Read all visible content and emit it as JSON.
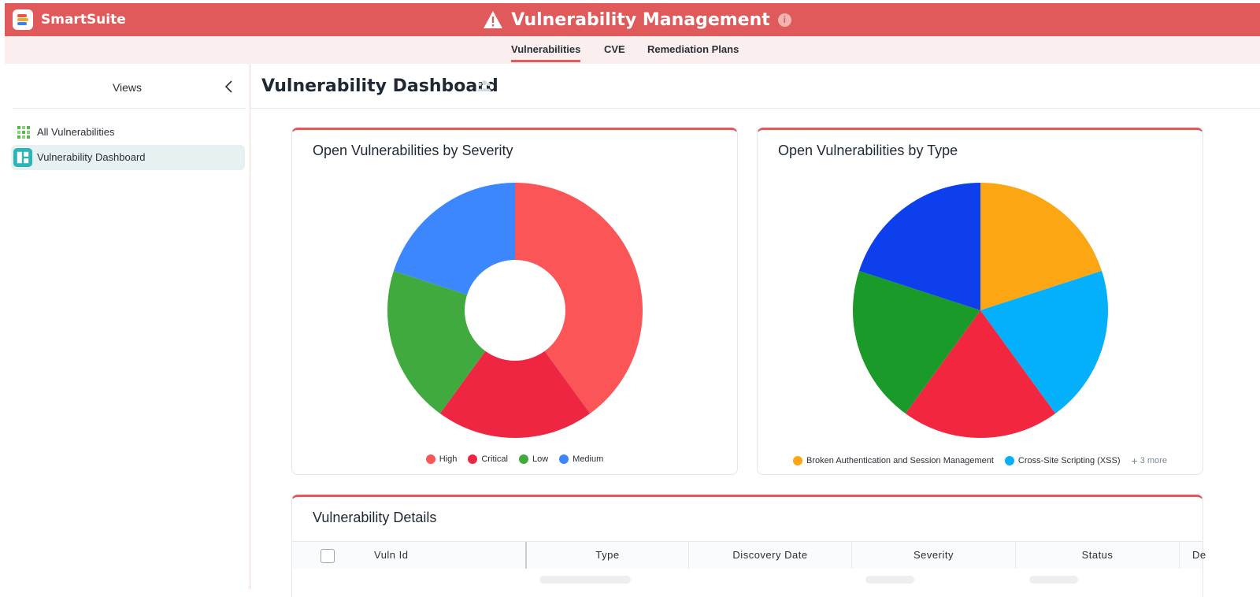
{
  "app": {
    "brand": "SmartSuite",
    "title": "Vulnerability Management",
    "header_color": "#e05a5c",
    "info_glyph": "i"
  },
  "tabs": [
    {
      "label": "Vulnerabilities",
      "active": true
    },
    {
      "label": "CVE",
      "active": false
    },
    {
      "label": "Remediation Plans",
      "active": false
    }
  ],
  "sidebar": {
    "title": "Views",
    "items": [
      {
        "label": "All Vulnerabilities",
        "icon": "grid-icon",
        "active": false
      },
      {
        "label": "Vulnerability Dashboard",
        "icon": "dashboard-icon",
        "active": true
      }
    ]
  },
  "main": {
    "title": "Vulnerability Dashboard",
    "details_title": "Vulnerability Details",
    "table_columns": [
      "Vuln Id",
      "Type",
      "Discovery Date",
      "Severity",
      "Status",
      "De"
    ]
  },
  "chart_data": [
    {
      "type": "pie",
      "variant": "donut",
      "title": "Open Vulnerabilities by Severity",
      "categories": [
        "High",
        "Critical",
        "Low",
        "Medium"
      ],
      "values": [
        40,
        20,
        20,
        20
      ],
      "colors": [
        "#fb5558",
        "#ef2642",
        "#40aa3e",
        "#3d87fe"
      ],
      "legend": "bottom"
    },
    {
      "type": "pie",
      "title": "Open Vulnerabilities by Type",
      "categories": [
        "Broken Authentication and Session Management",
        "Cross-Site Scripting (XSS)",
        "",
        "",
        ""
      ],
      "values": [
        20,
        20,
        20,
        20,
        20
      ],
      "colors": [
        "#fba612",
        "#04b0fc",
        "#f2273f",
        "#1a9a28",
        "#0d3fed"
      ],
      "legend_visible": [
        "Broken Authentication and Session Management",
        "Cross-Site Scripting (XSS)"
      ],
      "legend_more": "3 more",
      "legend": "bottom"
    }
  ]
}
